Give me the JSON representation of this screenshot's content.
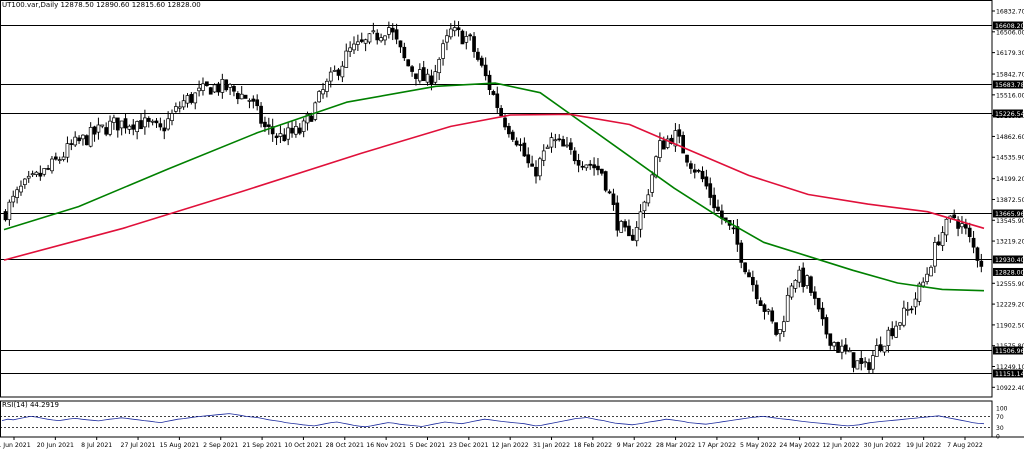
{
  "header": {
    "symbol": "UT100.var,Daily",
    "ohlc": "12878.50 12890.60 12815.60 12828.00"
  },
  "rsi_label": "RSI(14) 44.2919",
  "colors": {
    "candle": "#000000",
    "candle_up_fill": "#ffffff",
    "candle_down_fill": "#000000",
    "ma_fast": "#008000",
    "ma_slow": "#e0103a",
    "level": "#000000",
    "rsi_line": "#1b2a9e",
    "grid": "#000000"
  },
  "chart_data": {
    "type": "candlestick",
    "price_axis": {
      "min": 10770,
      "max": 16880,
      "ticks": [
        "16832.70",
        "16506.00",
        "16179.30",
        "15842.70",
        "15516.00",
        "15189.30",
        "14862.60",
        "14535.90",
        "14199.20",
        "13872.50",
        "13545.90",
        "13219.20",
        "12555.90",
        "12229.20",
        "11902.50",
        "11575.80",
        "11249.10",
        "10922.40"
      ],
      "levels": [
        "16608.20",
        "15683.78",
        "15226.54",
        "13665.96",
        "12930.40",
        "11506.96",
        "11151.14"
      ],
      "current_price": "12828.00"
    },
    "x_labels": [
      "1 Jun 2021",
      "20 Jun 2021",
      "8 Jul 2021",
      "27 Jul 2021",
      "15 Aug 2021",
      "2 Sep 2021",
      "21 Sep 2021",
      "10 Oct 2021",
      "28 Oct 2021",
      "16 Nov 2021",
      "5 Dec 2021",
      "23 Dec 2021",
      "12 Jan 2022",
      "31 Jan 2022",
      "18 Feb 2022",
      "9 Mar 2022",
      "28 Mar 2022",
      "17 Apr 2022",
      "5 May 2022",
      "24 May 2022",
      "12 Jun 2022",
      "30 Jun 2022",
      "19 Jul 2022",
      "7 Aug 2022"
    ],
    "close_path": [
      [
        0,
        13650
      ],
      [
        12,
        14050
      ],
      [
        30,
        14350
      ],
      [
        45,
        14700
      ],
      [
        60,
        14900
      ],
      [
        72,
        15050
      ],
      [
        90,
        15100
      ],
      [
        105,
        14950
      ],
      [
        120,
        15400
      ],
      [
        140,
        15650
      ],
      [
        150,
        15620
      ],
      [
        165,
        15450
      ],
      [
        175,
        15000
      ],
      [
        185,
        14850
      ],
      [
        200,
        14950
      ],
      [
        215,
        15600
      ],
      [
        232,
        16200
      ],
      [
        245,
        16350
      ],
      [
        258,
        16600
      ],
      [
        270,
        16000
      ],
      [
        285,
        15700
      ],
      [
        300,
        16500
      ],
      [
        312,
        16400
      ],
      [
        325,
        15700
      ],
      [
        335,
        15150
      ],
      [
        345,
        14800
      ],
      [
        355,
        14250
      ],
      [
        368,
        14800
      ],
      [
        380,
        14600
      ],
      [
        392,
        14450
      ],
      [
        402,
        14300
      ],
      [
        412,
        13500
      ],
      [
        420,
        13200
      ],
      [
        430,
        13800
      ],
      [
        440,
        14700
      ],
      [
        450,
        14900
      ],
      [
        460,
        14500
      ],
      [
        470,
        14150
      ],
      [
        480,
        13650
      ],
      [
        490,
        13300
      ],
      [
        500,
        12700
      ],
      [
        510,
        12200
      ],
      [
        520,
        11700
      ],
      [
        530,
        12700
      ],
      [
        540,
        12550
      ],
      [
        550,
        11850
      ],
      [
        560,
        11550
      ],
      [
        570,
        11350
      ],
      [
        578,
        11200
      ],
      [
        588,
        11600
      ],
      [
        598,
        11900
      ],
      [
        608,
        12150
      ],
      [
        618,
        12600
      ],
      [
        628,
        13300
      ],
      [
        638,
        13600
      ],
      [
        645,
        13400
      ],
      [
        652,
        13050
      ],
      [
        658,
        12828
      ]
    ],
    "ma_fast": [
      [
        0,
        13400
      ],
      [
        50,
        13760
      ],
      [
        110,
        14350
      ],
      [
        170,
        14920
      ],
      [
        230,
        15400
      ],
      [
        290,
        15650
      ],
      [
        330,
        15700
      ],
      [
        360,
        15550
      ],
      [
        390,
        15050
      ],
      [
        420,
        14550
      ],
      [
        450,
        14050
      ],
      [
        480,
        13600
      ],
      [
        510,
        13200
      ],
      [
        540,
        12980
      ],
      [
        570,
        12760
      ],
      [
        600,
        12560
      ],
      [
        630,
        12460
      ],
      [
        658,
        12440
      ]
    ],
    "ma_slow": [
      [
        0,
        12920
      ],
      [
        80,
        13420
      ],
      [
        160,
        14000
      ],
      [
        240,
        14600
      ],
      [
        300,
        15020
      ],
      [
        340,
        15200
      ],
      [
        380,
        15210
      ],
      [
        420,
        15050
      ],
      [
        460,
        14650
      ],
      [
        500,
        14250
      ],
      [
        540,
        13950
      ],
      [
        580,
        13800
      ],
      [
        620,
        13680
      ],
      [
        658,
        13420
      ]
    ],
    "rsi": {
      "ticks": [
        "100",
        "70",
        "30",
        "0"
      ],
      "levels": [
        70,
        30
      ],
      "values": [
        55,
        60,
        58,
        62,
        66,
        70,
        68,
        64,
        60,
        57,
        55,
        58,
        61,
        63,
        60,
        58,
        56,
        54,
        57,
        60,
        62,
        65,
        63,
        60,
        58,
        55,
        53,
        50,
        48,
        52,
        56,
        60,
        62,
        65,
        68,
        70,
        72,
        74,
        76,
        78,
        80,
        77,
        74,
        70,
        68,
        66,
        62,
        58,
        55,
        52,
        48,
        45,
        43,
        40,
        38,
        36,
        40,
        44,
        48,
        50,
        46,
        42,
        38,
        35,
        33,
        36,
        40,
        44,
        48,
        46,
        42,
        40,
        38,
        36,
        34,
        38,
        42,
        46,
        50,
        48,
        46,
        44,
        48,
        52,
        56,
        60,
        58,
        55,
        52,
        50,
        48,
        46,
        44,
        40,
        36,
        38,
        42,
        46,
        50,
        54,
        58,
        62,
        64,
        66,
        62,
        58,
        55,
        50,
        46,
        44,
        42,
        40,
        43,
        46,
        50,
        53,
        56,
        60,
        58,
        55,
        52,
        48,
        46,
        44,
        42,
        45,
        48,
        51,
        54,
        57,
        60,
        63,
        66,
        68,
        70,
        68,
        65,
        62,
        60,
        58,
        55,
        52,
        50,
        48,
        46,
        44,
        42,
        40,
        38,
        36,
        38,
        40,
        44,
        48,
        50,
        52,
        54,
        56,
        58,
        60,
        62,
        64,
        66,
        68,
        70,
        72,
        68,
        64,
        60,
        56,
        52,
        48,
        45,
        44
      ]
    }
  }
}
